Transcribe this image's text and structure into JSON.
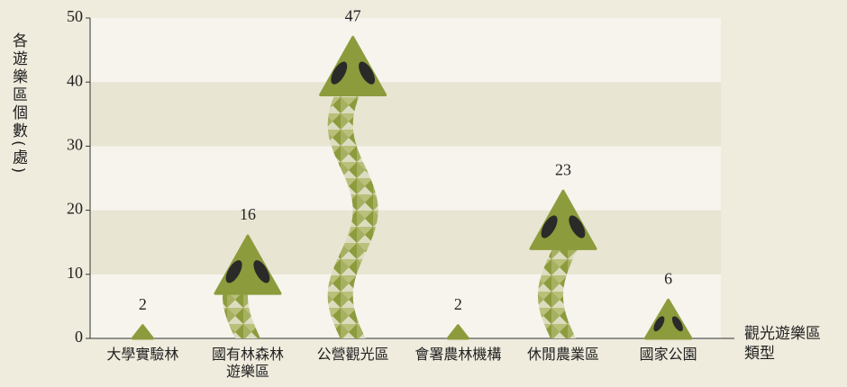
{
  "chart_data": {
    "type": "bar",
    "y_axis_label": "各遊樂區個數(處)",
    "x_axis_label": "觀光遊樂區\n類型",
    "categories": [
      "大學實驗林",
      "國有林森林\n遊樂區",
      "公營觀光區",
      "會署農林機構",
      "休閒農業區",
      "國家公園"
    ],
    "values": [
      2,
      16,
      47,
      2,
      23,
      6
    ],
    "color": "#8c9b3c",
    "ylim": [
      0,
      50
    ],
    "yticks": [
      0,
      10,
      20,
      30,
      40,
      50
    ],
    "grid": true
  }
}
